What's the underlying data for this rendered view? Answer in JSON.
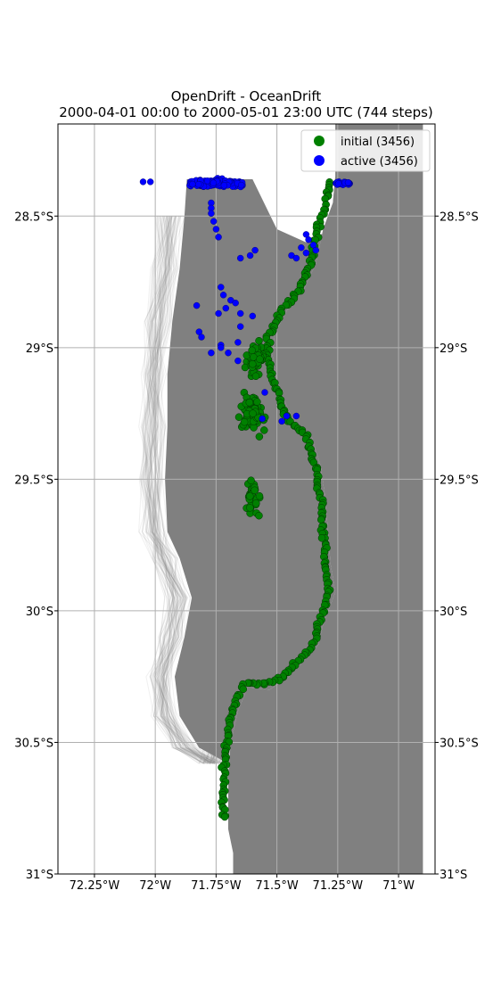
{
  "chart_data": {
    "type": "scatter",
    "title": "OpenDrift - OceanDrift",
    "subtitle": "2000-04-01 00:00 to 2000-05-01 23:00 UTC (744 steps)",
    "xlabel": "",
    "ylabel": "",
    "xlim": [
      -72.4,
      -70.85
    ],
    "ylim": [
      -31.0,
      -28.15
    ],
    "grid": true,
    "legend_position": "top-right",
    "x_ticks": [
      {
        "value": -72.25,
        "label": "72.25°W"
      },
      {
        "value": -72.0,
        "label": "72°W"
      },
      {
        "value": -71.75,
        "label": "71.75°W"
      },
      {
        "value": -71.5,
        "label": "71.5°W"
      },
      {
        "value": -71.25,
        "label": "71.25°W"
      },
      {
        "value": -71.0,
        "label": "71°W"
      }
    ],
    "y_ticks": [
      {
        "value": -28.5,
        "label": "28.5°S"
      },
      {
        "value": -29.0,
        "label": "29°S"
      },
      {
        "value": -29.5,
        "label": "29.5°S"
      },
      {
        "value": -30.0,
        "label": "30°S"
      },
      {
        "value": -30.5,
        "label": "30.5°S"
      },
      {
        "value": -31.0,
        "label": "31°S"
      }
    ],
    "colors": {
      "land": "#808080",
      "trajectory": "#808080",
      "initial": "#008000",
      "active": "#0000ff",
      "grid": "#b0b0b0"
    },
    "coastline": [
      [
        -70.9,
        -28.15
      ],
      [
        -71.26,
        -28.15
      ],
      [
        -71.26,
        -28.35
      ],
      [
        -71.27,
        -28.45
      ],
      [
        -71.31,
        -28.55
      ],
      [
        -71.34,
        -28.68
      ],
      [
        -71.39,
        -28.78
      ],
      [
        -71.46,
        -28.86
      ],
      [
        -71.51,
        -28.95
      ],
      [
        -71.52,
        -29.02
      ],
      [
        -71.5,
        -29.12
      ],
      [
        -71.47,
        -29.2
      ],
      [
        -71.43,
        -29.28
      ],
      [
        -71.36,
        -29.33
      ],
      [
        -71.32,
        -29.45
      ],
      [
        -71.3,
        -29.58
      ],
      [
        -71.29,
        -29.7
      ],
      [
        -71.28,
        -29.82
      ],
      [
        -71.26,
        -29.93
      ],
      [
        -71.31,
        -30.05
      ],
      [
        -71.33,
        -30.13
      ],
      [
        -71.4,
        -30.2
      ],
      [
        -71.45,
        -30.25
      ],
      [
        -71.53,
        -30.3
      ],
      [
        -71.62,
        -30.29
      ],
      [
        -71.66,
        -30.38
      ],
      [
        -71.69,
        -30.5
      ],
      [
        -71.7,
        -30.62
      ],
      [
        -71.7,
        -30.72
      ],
      [
        -71.7,
        -30.83
      ],
      [
        -71.68,
        -30.92
      ],
      [
        -71.68,
        -31.0
      ],
      [
        -70.9,
        -31.0
      ]
    ],
    "trajectory_envelope": [
      [
        -71.87,
        -28.36
      ],
      [
        -71.6,
        -28.36
      ],
      [
        -71.5,
        -28.55
      ],
      [
        -71.38,
        -28.6
      ],
      [
        -71.28,
        -28.55
      ],
      [
        -71.26,
        -28.45
      ],
      [
        -71.26,
        -28.35
      ],
      [
        -71.27,
        -28.45
      ],
      [
        -71.31,
        -28.55
      ],
      [
        -71.34,
        -28.68
      ],
      [
        -71.39,
        -28.78
      ],
      [
        -71.46,
        -28.86
      ],
      [
        -71.51,
        -28.95
      ],
      [
        -71.52,
        -29.02
      ],
      [
        -71.5,
        -29.12
      ],
      [
        -71.47,
        -29.2
      ],
      [
        -71.43,
        -29.28
      ],
      [
        -71.36,
        -29.33
      ],
      [
        -71.32,
        -29.45
      ],
      [
        -71.3,
        -29.58
      ],
      [
        -71.29,
        -29.7
      ],
      [
        -71.28,
        -29.82
      ],
      [
        -71.26,
        -29.93
      ],
      [
        -71.31,
        -30.05
      ],
      [
        -71.33,
        -30.13
      ],
      [
        -71.4,
        -30.2
      ],
      [
        -71.45,
        -30.25
      ],
      [
        -71.53,
        -30.3
      ],
      [
        -71.62,
        -30.29
      ],
      [
        -71.66,
        -30.38
      ],
      [
        -71.69,
        -30.5
      ],
      [
        -71.7,
        -30.58
      ],
      [
        -71.82,
        -30.52
      ],
      [
        -71.9,
        -30.4
      ],
      [
        -71.92,
        -30.25
      ],
      [
        -71.88,
        -30.1
      ],
      [
        -71.85,
        -29.95
      ],
      [
        -71.9,
        -29.8
      ],
      [
        -71.95,
        -29.7
      ],
      [
        -71.96,
        -29.5
      ],
      [
        -71.95,
        -29.3
      ],
      [
        -71.95,
        -29.1
      ],
      [
        -71.93,
        -28.9
      ],
      [
        -71.9,
        -28.7
      ],
      [
        -71.88,
        -28.5
      ]
    ],
    "initial_coast_path": [
      [
        -71.29,
        -28.37
      ],
      [
        -71.3,
        -28.45
      ],
      [
        -71.33,
        -28.55
      ],
      [
        -71.36,
        -28.68
      ],
      [
        -71.41,
        -28.78
      ],
      [
        -71.48,
        -28.86
      ],
      [
        -71.53,
        -28.95
      ],
      [
        -71.54,
        -29.02
      ],
      [
        -71.52,
        -29.12
      ],
      [
        -71.49,
        -29.2
      ],
      [
        -71.45,
        -29.28
      ],
      [
        -71.38,
        -29.33
      ],
      [
        -71.34,
        -29.45
      ],
      [
        -71.32,
        -29.58
      ],
      [
        -71.31,
        -29.7
      ],
      [
        -71.3,
        -29.82
      ],
      [
        -71.29,
        -29.93
      ],
      [
        -71.33,
        -30.05
      ],
      [
        -71.35,
        -30.13
      ],
      [
        -71.42,
        -30.2
      ],
      [
        -71.47,
        -30.25
      ],
      [
        -71.55,
        -30.28
      ],
      [
        -71.64,
        -30.28
      ],
      [
        -71.68,
        -30.38
      ],
      [
        -71.71,
        -30.5
      ],
      [
        -71.72,
        -30.62
      ],
      [
        -71.72,
        -30.72
      ],
      [
        -71.72,
        -30.8
      ]
    ],
    "initial_clusters": [
      {
        "lon": -71.59,
        "lat": -29.05,
        "count": 60,
        "spread_lon": 0.03,
        "spread_lat": 0.05
      },
      {
        "lon": -71.6,
        "lat": -29.25,
        "count": 80,
        "spread_lon": 0.04,
        "spread_lat": 0.06
      },
      {
        "lon": -71.6,
        "lat": -29.57,
        "count": 40,
        "spread_lon": 0.02,
        "spread_lat": 0.05
      }
    ],
    "active_clusters": [
      {
        "lon": -71.75,
        "lat": -28.375,
        "count": 150,
        "spread_lon": 0.11,
        "spread_lat": 0.012
      },
      {
        "lon": -71.23,
        "lat": -28.375,
        "count": 20,
        "spread_lon": 0.03,
        "spread_lat": 0.006
      }
    ],
    "active_points": [
      [
        -72.05,
        -28.37
      ],
      [
        -72.02,
        -28.37
      ],
      [
        -71.77,
        -28.45
      ],
      [
        -71.77,
        -28.47
      ],
      [
        -71.77,
        -28.49
      ],
      [
        -71.76,
        -28.52
      ],
      [
        -71.75,
        -28.55
      ],
      [
        -71.74,
        -28.58
      ],
      [
        -71.65,
        -28.66
      ],
      [
        -71.61,
        -28.65
      ],
      [
        -71.73,
        -28.77
      ],
      [
        -71.72,
        -28.8
      ],
      [
        -71.69,
        -28.82
      ],
      [
        -71.67,
        -28.83
      ],
      [
        -71.71,
        -28.85
      ],
      [
        -71.74,
        -28.87
      ],
      [
        -71.65,
        -28.87
      ],
      [
        -71.65,
        -28.92
      ],
      [
        -71.6,
        -28.88
      ],
      [
        -71.83,
        -28.84
      ],
      [
        -71.82,
        -28.94
      ],
      [
        -71.81,
        -28.96
      ],
      [
        -71.73,
        -28.99
      ],
      [
        -71.66,
        -28.98
      ],
      [
        -71.7,
        -29.02
      ],
      [
        -71.77,
        -29.02
      ],
      [
        -71.73,
        -29.0
      ],
      [
        -71.66,
        -29.05
      ],
      [
        -71.55,
        -29.17
      ],
      [
        -71.44,
        -28.65
      ],
      [
        -71.42,
        -28.66
      ],
      [
        -71.4,
        -28.62
      ],
      [
        -71.38,
        -28.64
      ],
      [
        -71.37,
        -28.59
      ],
      [
        -71.35,
        -28.61
      ],
      [
        -71.34,
        -28.63
      ],
      [
        -71.38,
        -28.57
      ],
      [
        -71.56,
        -29.27
      ],
      [
        -71.59,
        -28.63
      ],
      [
        -71.46,
        -29.26
      ],
      [
        -71.48,
        -29.28
      ],
      [
        -71.42,
        -29.26
      ]
    ],
    "series": [
      {
        "name": "initial (3456)",
        "color": "#008000"
      },
      {
        "name": "active (3456)",
        "color": "#0000ff"
      }
    ]
  }
}
